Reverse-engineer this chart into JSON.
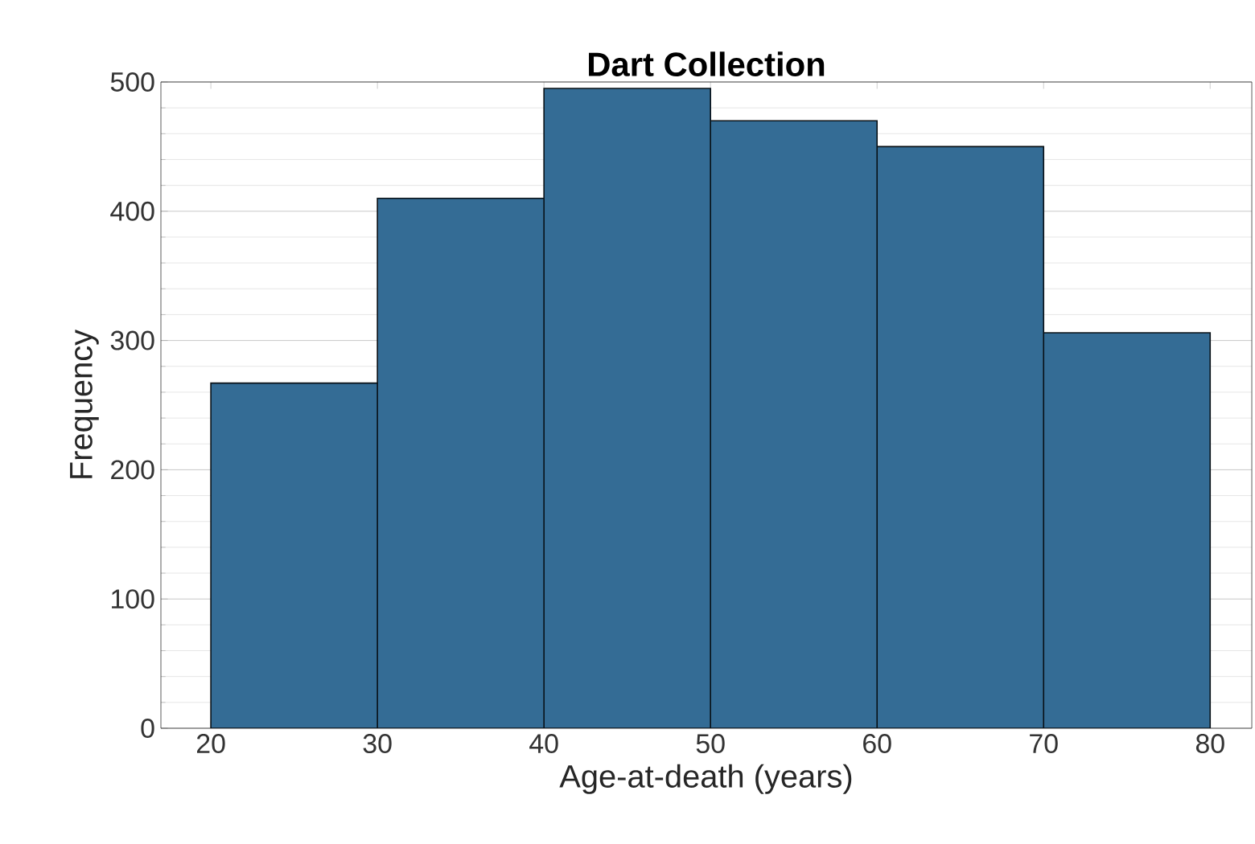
{
  "chart_data": {
    "type": "histogram",
    "title": "Dart Collection",
    "xlabel": "Age-at-death (years)",
    "ylabel": "Frequency",
    "bins": [
      20,
      30,
      40,
      50,
      60,
      70,
      80
    ],
    "values": [
      267,
      410,
      495,
      470,
      450,
      306
    ],
    "color": "#346c95",
    "xlim": [
      17,
      82.5
    ],
    "ylim": [
      0,
      500
    ],
    "xticks": [
      20,
      30,
      40,
      50,
      60,
      70,
      80
    ],
    "yticks": [
      0,
      100,
      200,
      300,
      400,
      500
    ],
    "grid": "y"
  }
}
